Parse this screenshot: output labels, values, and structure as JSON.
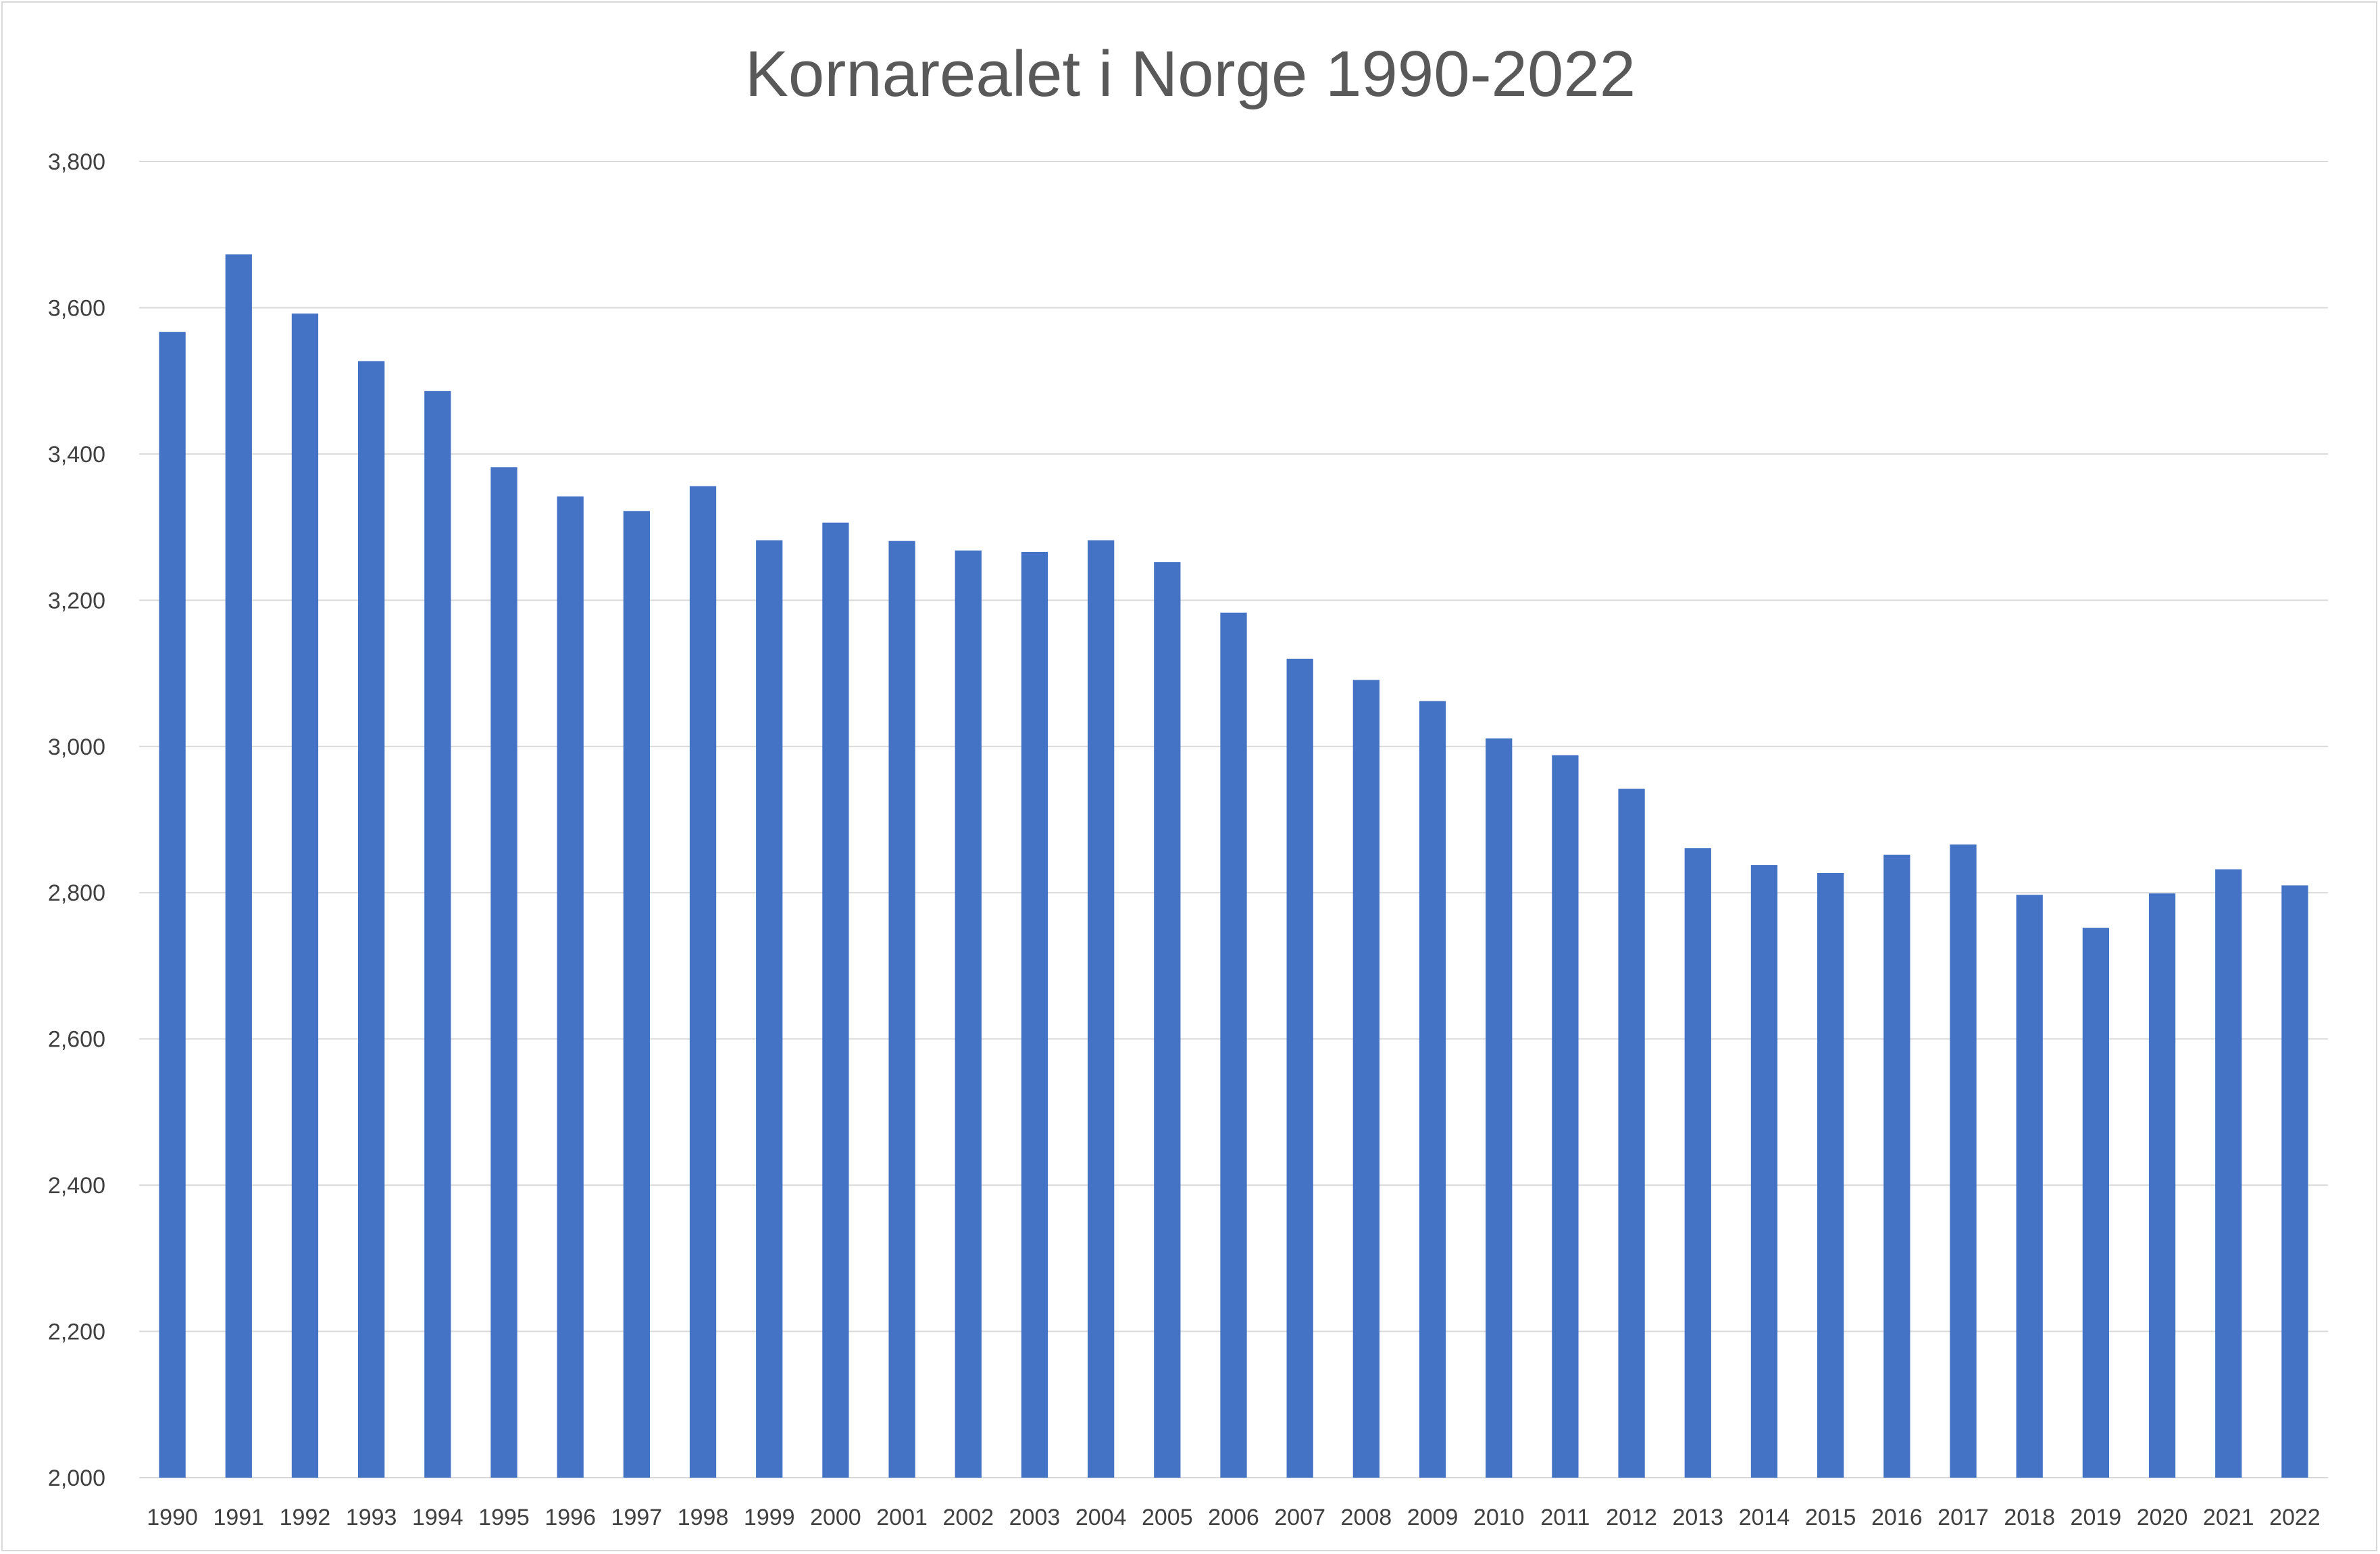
{
  "chart_data": {
    "type": "bar",
    "title": "Kornarealet i Norge 1990-2022",
    "xlabel": "",
    "ylabel": "",
    "ylim": [
      2000,
      3800
    ],
    "yticks": [
      2000,
      2200,
      2400,
      2600,
      2800,
      3000,
      3200,
      3400,
      3600,
      3800
    ],
    "ytick_labels": [
      "2,000",
      "2,200",
      "2,400",
      "2,600",
      "2,800",
      "3,000",
      "3,200",
      "3,400",
      "3,600",
      "3,800"
    ],
    "grid": true,
    "legend": "none",
    "bar_color": "#4472C4",
    "categories": [
      "1990",
      "1991",
      "1992",
      "1993",
      "1994",
      "1995",
      "1996",
      "1997",
      "1998",
      "1999",
      "2000",
      "2001",
      "2002",
      "2003",
      "2004",
      "2005",
      "2006",
      "2007",
      "2008",
      "2009",
      "2010",
      "2011",
      "2012",
      "2013",
      "2014",
      "2015",
      "2016",
      "2017",
      "2018",
      "2019",
      "2020",
      "2021",
      "2022"
    ],
    "values": [
      3567,
      3673,
      3592,
      3527,
      3486,
      3382,
      3342,
      3322,
      3356,
      3282,
      3306,
      3281,
      3268,
      3266,
      3282,
      3252,
      3183,
      3120,
      3091,
      3062,
      3011,
      2988,
      2942,
      2861,
      2838,
      2827,
      2852,
      2866,
      2797,
      2752,
      2799,
      2832,
      2810
    ]
  }
}
